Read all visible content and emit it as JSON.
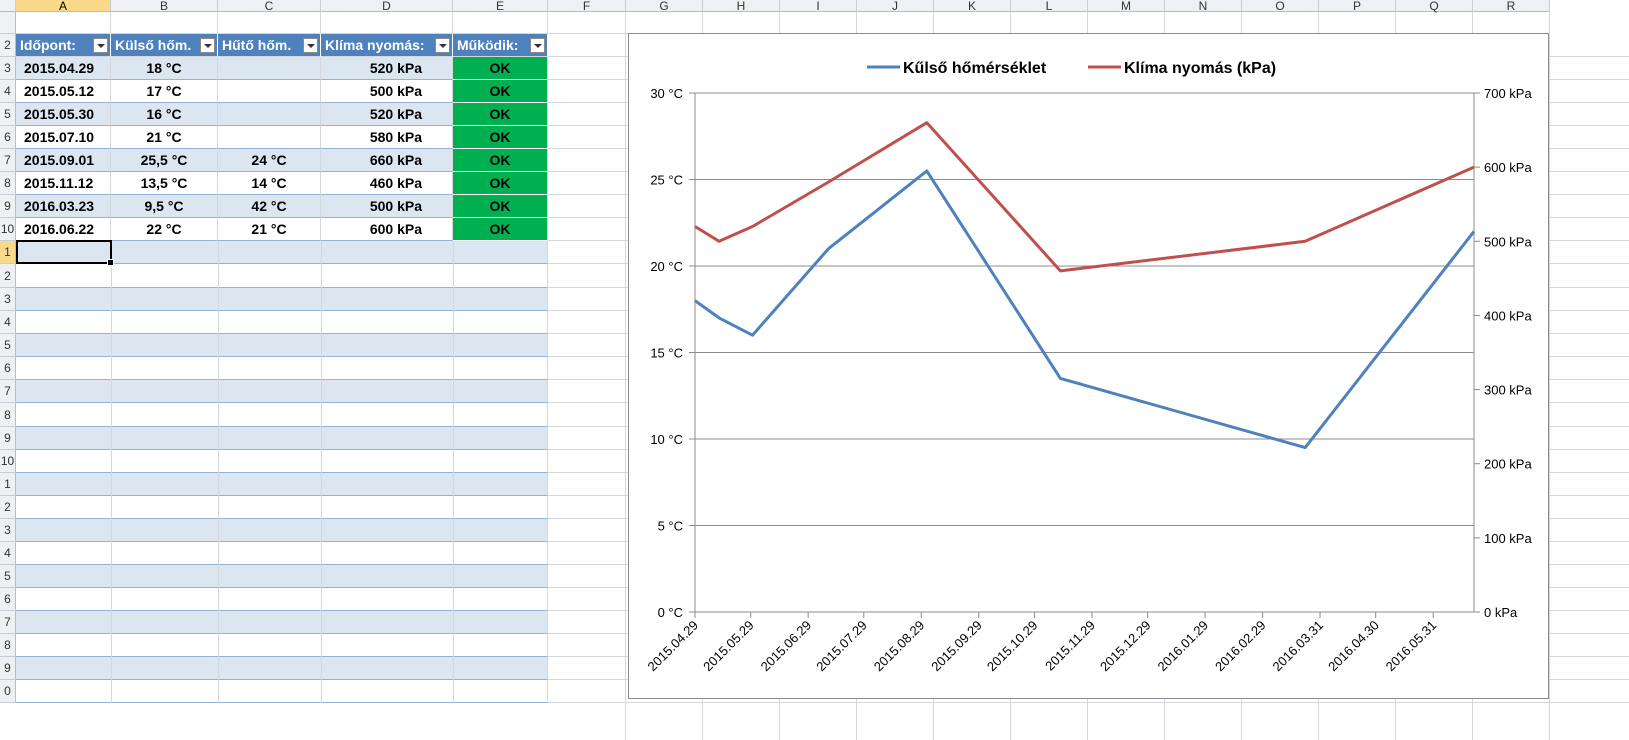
{
  "columns": [
    "A",
    "B",
    "C",
    "D",
    "E",
    "F",
    "G",
    "H",
    "I",
    "J",
    "K",
    "L",
    "M",
    "N",
    "O",
    "P",
    "Q",
    "R"
  ],
  "rows": [
    "2",
    "3",
    "4",
    "5",
    "6",
    "7",
    "8",
    "9",
    "10",
    "1",
    "2",
    "3",
    "4",
    "5",
    "6",
    "7",
    "8",
    "9",
    "10",
    "1",
    "2",
    "3",
    "4",
    "5",
    "6",
    "7",
    "8",
    "9",
    "0"
  ],
  "table": {
    "headers": [
      "Időpont:",
      "Külső hőm.",
      "Hűtő hőm.",
      "Klíma nyomás:",
      "Működik:"
    ],
    "rows": [
      [
        "2015.04.29",
        "18 °C",
        "",
        "520 kPa",
        "OK"
      ],
      [
        "2015.05.12",
        "17 °C",
        "",
        "500 kPa",
        "OK"
      ],
      [
        "2015.05.30",
        "16 °C",
        "",
        "520 kPa",
        "OK"
      ],
      [
        "2015.07.10",
        "21 °C",
        "",
        "580 kPa",
        "OK"
      ],
      [
        "2015.09.01",
        "25,5 °C",
        "24 °C",
        "660 kPa",
        "OK"
      ],
      [
        "2015.11.12",
        "13,5 °C",
        "14 °C",
        "460 kPa",
        "OK"
      ],
      [
        "2016.03.23",
        "9,5 °C",
        "42 °C",
        "500 kPa",
        "OK"
      ],
      [
        "2016.06.22",
        "22 °C",
        "21 °C",
        "600 kPa",
        "OK"
      ]
    ]
  },
  "colors": {
    "blue": "#4f81bd",
    "red": "#c0504d",
    "ok_green": "#00b050",
    "header_blue": "#4f81bd",
    "band": "#dce6f1"
  },
  "chart_data": {
    "type": "line",
    "legend_position": "top",
    "grid": true,
    "series": [
      {
        "name": "Kűlső hőmérséklet",
        "axis": "left",
        "color": "#4f81bd",
        "x": [
          "2015.04.29",
          "2015.05.12",
          "2015.05.30",
          "2015.07.10",
          "2015.09.01",
          "2015.11.12",
          "2016.03.23",
          "2016.06.22"
        ],
        "values": [
          18,
          17,
          16,
          21,
          25.5,
          13.5,
          9.5,
          22
        ]
      },
      {
        "name": "Klíma nyomás (kPa)",
        "axis": "right",
        "color": "#c0504d",
        "x": [
          "2015.04.29",
          "2015.05.12",
          "2015.05.30",
          "2015.07.10",
          "2015.09.01",
          "2015.11.12",
          "2016.03.23",
          "2016.06.22"
        ],
        "values": [
          520,
          500,
          520,
          580,
          660,
          460,
          500,
          600
        ]
      }
    ],
    "y_left": {
      "min": 0,
      "max": 30,
      "ticks": [
        0,
        5,
        10,
        15,
        20,
        25,
        30
      ],
      "tick_labels": [
        "0 °C",
        "5 °C",
        "10 °C",
        "15 °C",
        "20 °C",
        "25 °C",
        "30 °C"
      ]
    },
    "y_right": {
      "min": 0,
      "max": 700,
      "ticks": [
        0,
        100,
        200,
        300,
        400,
        500,
        600,
        700
      ],
      "tick_labels": [
        "0 kPa",
        "100 kPa",
        "200 kPa",
        "300 kPa",
        "400 kPa",
        "500 kPa",
        "600 kPa",
        "700 kPa"
      ]
    },
    "x_axis": {
      "min": "2015.04.29",
      "max": "2016.06.22",
      "tick_labels": [
        "2015.04.29",
        "2015.05.29",
        "2015.06.29",
        "2015.07.29",
        "2015.08.29",
        "2015.09.29",
        "2015.10.29",
        "2015.11.29",
        "2015.12.29",
        "2016.01.29",
        "2016.02.29",
        "2016.03.31",
        "2016.04.30",
        "2016.05.31"
      ]
    }
  }
}
